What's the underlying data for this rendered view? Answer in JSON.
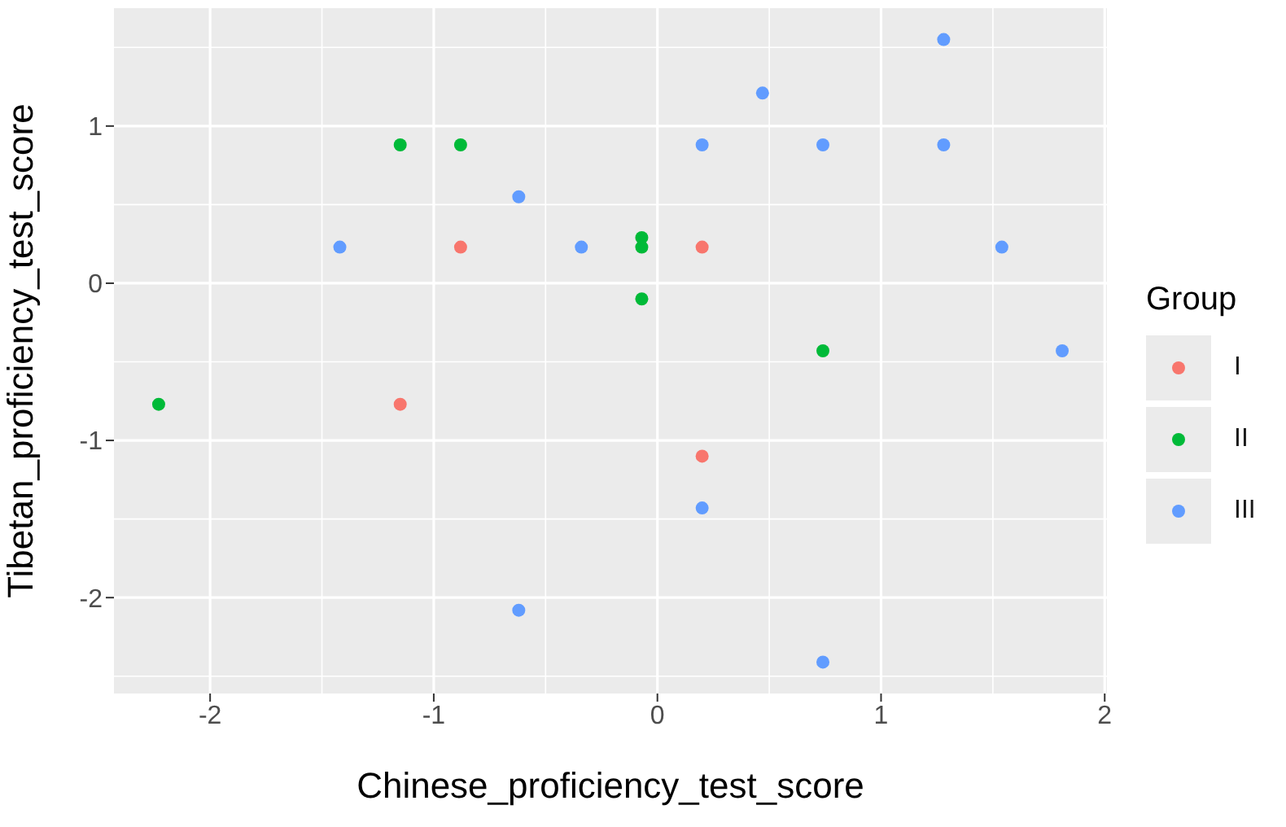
{
  "chart_data": {
    "type": "scatter",
    "xlabel": "Chinese_proficiency_test_score",
    "ylabel": "Tibetan_proficiency_test_score",
    "legend_title": "Group",
    "legend": "right",
    "grid": true,
    "marker": "circle",
    "xlim": [
      -2.43,
      2.01
    ],
    "ylim": [
      -2.61,
      1.75
    ],
    "xticks": [
      -2,
      -1,
      0,
      1,
      2
    ],
    "yticks": [
      -2,
      -1,
      0,
      1
    ],
    "series": [
      {
        "name": "I",
        "color": "#f8766d",
        "x": [
          -0.88,
          -1.15,
          0.2,
          0.2
        ],
        "values": [
          0.23,
          -0.77,
          0.23,
          -1.1
        ]
      },
      {
        "name": "II",
        "color": "#00ba38",
        "x": [
          -1.15,
          -0.88,
          -0.07,
          -0.07,
          -0.07,
          0.74,
          -2.23
        ],
        "values": [
          0.88,
          0.88,
          0.29,
          0.23,
          -0.1,
          -0.43,
          -0.77
        ]
      },
      {
        "name": "III",
        "color": "#619cff",
        "x": [
          1.28,
          0.47,
          0.2,
          0.74,
          1.28,
          -0.62,
          -1.42,
          -0.34,
          1.54,
          1.81,
          0.2,
          -0.62,
          0.74
        ],
        "values": [
          1.55,
          1.21,
          0.88,
          0.88,
          0.88,
          0.55,
          0.23,
          0.23,
          0.23,
          -0.43,
          -1.43,
          -2.08,
          -2.41
        ]
      }
    ]
  }
}
